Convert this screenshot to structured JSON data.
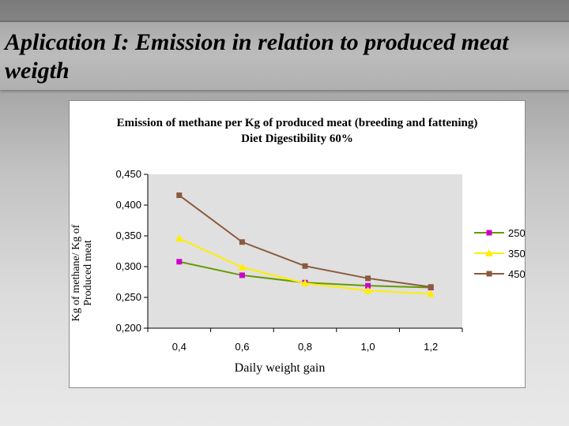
{
  "slide": {
    "title": "Aplication I: Emission in relation to  produced meat weigth"
  },
  "chart_data": {
    "type": "line",
    "title": "Emission of methane per Kg of produced meat (breeding and fattening)",
    "subtitle": "Diet Digestibility 60%",
    "xlabel": "Daily weight gain",
    "ylabel": [
      "Kg of methane/ Kg of",
      "Produced meat"
    ],
    "x": [
      0.4,
      0.6,
      0.8,
      1.0,
      1.2
    ],
    "x_tick_labels": [
      "0,4",
      "0,6",
      "0,8",
      "1,0",
      "1,2"
    ],
    "y_tick_values": [
      0.2,
      0.25,
      0.3,
      0.35,
      0.4,
      0.45
    ],
    "y_tick_labels": [
      "0,200",
      "0,250",
      "0,300",
      "0,350",
      "0,400",
      "0,450"
    ],
    "ylim": [
      0.2,
      0.45
    ],
    "grid": false,
    "legend_position": "right",
    "series": [
      {
        "name": "250",
        "values": [
          0.308,
          0.286,
          0.274,
          0.269,
          0.266
        ],
        "line_color": "#669900",
        "marker_color": "#cc00cc",
        "marker": "square"
      },
      {
        "name": "350",
        "values": [
          0.346,
          0.299,
          0.273,
          0.261,
          0.256
        ],
        "line_color": "#ffee00",
        "marker_color": "#ffee00",
        "marker": "triangle"
      },
      {
        "name": "450",
        "values": [
          0.416,
          0.34,
          0.301,
          0.281,
          0.267
        ],
        "line_color": "#8b5a3c",
        "marker_color": "#8b5a3c",
        "marker": "square"
      }
    ]
  }
}
